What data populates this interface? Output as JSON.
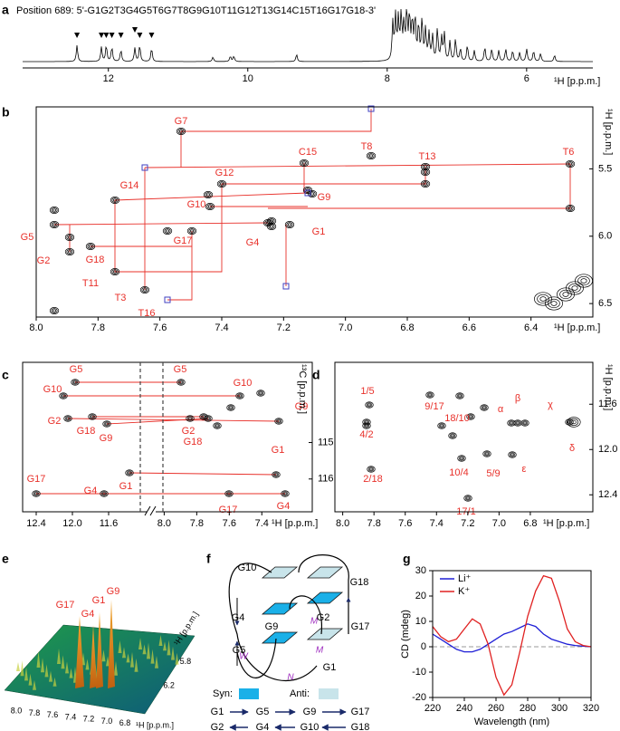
{
  "panels": {
    "a": {
      "letter": "a",
      "title": "Position 689: 5'-G1G2T3G4G5T6G7T8G9G10T11G12T13G14C15T16G17G18-3'",
      "xlim": [
        13.23,
        5.05
      ],
      "xticks": [
        12,
        10,
        8,
        6
      ],
      "xlabel": "¹H [p.p.m.]"
    },
    "b": {
      "letter": "b",
      "xlim": [
        8.0,
        6.2
      ],
      "ylim": [
        5.04,
        6.6
      ],
      "xticks": [
        {
          "value": 8,
          "label": "8.0"
        },
        7.8,
        7.6,
        7.4,
        7.2,
        {
          "value": 7,
          "label": "7.0"
        },
        6.8,
        6.6,
        6.4
      ],
      "yticks": [
        5.5,
        {
          "value": 6,
          "label": "6.0"
        },
        6.5
      ],
      "xlabel": "¹H [p.p.m.]",
      "ylabel": "¹H [p.p.m.]",
      "labels": [
        "G7",
        "C15",
        "T8",
        "T13",
        "T6",
        "G12",
        "G14",
        "G10",
        "G9",
        "G5",
        "G17",
        "G4",
        "G1",
        "G2",
        "G18",
        "T11",
        "T3",
        "T16"
      ]
    },
    "c": {
      "letter": "c",
      "xlim_left": [
        12.55,
        11.3
      ],
      "xlim_right": [
        8.03,
        7.09
      ],
      "ylim": [
        112.8,
        116.9
      ],
      "xticks_left": [
        12.4,
        {
          "value": 12,
          "label": "12.0"
        },
        11.6
      ],
      "xticks_right": [
        {
          "value": 8,
          "label": "8.0"
        },
        7.8,
        7.6,
        7.4
      ],
      "yticks": [
        115,
        116
      ],
      "xlabel": "¹H [p.p.m.]",
      "ylabel": "¹³C [p.p.m.]",
      "labels_left": [
        "G5",
        "G10",
        "G2",
        "G18",
        "G9",
        "G1",
        "G17",
        "G4"
      ],
      "labels_right": [
        "G5",
        "G10",
        "G9",
        "G2",
        "G18",
        "G1",
        "G17",
        "G4"
      ]
    },
    "d": {
      "letter": "d",
      "xlim": [
        8.05,
        6.4
      ],
      "ylim": [
        11.23,
        12.55
      ],
      "xticks": [
        {
          "value": 8,
          "label": "8.0"
        },
        7.8,
        7.6,
        7.4,
        7.2,
        {
          "value": 7,
          "label": "7.0"
        },
        6.8
      ],
      "yticks": [
        11.6,
        {
          "value": 12,
          "label": "12.0"
        },
        12.4
      ],
      "xlabel": "¹H [p.p.m.]",
      "ylabel": "¹H [p.p.m.]",
      "labels": [
        "1/5",
        "4/2",
        "9/17",
        "18/10",
        "α",
        "β",
        "χ",
        "δ",
        "2/18",
        "10/4",
        "5/9",
        "ε",
        "17/1"
      ]
    },
    "e": {
      "letter": "e",
      "xlim": [
        8.1,
        6.7
      ],
      "ylim": [
        6.6,
        5.4
      ],
      "xticks": [
        {
          "value": 8,
          "label": "8.0"
        },
        7.8,
        7.6,
        7.4,
        7.2,
        {
          "value": 7,
          "label": "7.0"
        },
        6.8
      ],
      "yticks": [
        6.2,
        5.8
      ],
      "xlabel": "¹H [p.p.m.]",
      "ylabel": "¹H [p.p.m.]",
      "labels": [
        "G17",
        "G4",
        "G1",
        "G9"
      ]
    },
    "f": {
      "letter": "f",
      "labels": [
        "G10",
        "G18",
        "G4",
        "G9",
        "M",
        "G2",
        "G17",
        "W",
        "G5",
        "N",
        "G1",
        "M"
      ],
      "syn": "Syn:",
      "anti": "Anti:",
      "row1": [
        "G1",
        "G5",
        "G9",
        "G17"
      ],
      "row2": [
        "G2",
        "G4",
        "G10",
        "G18"
      ]
    },
    "g": {
      "letter": "g"
    }
  },
  "chart_data": {
    "type": "line",
    "xlabel": "Wavelength (nm)",
    "ylabel": "CD (mdeg)",
    "x": [
      220,
      225,
      230,
      235,
      240,
      245,
      250,
      255,
      260,
      265,
      270,
      275,
      280,
      285,
      290,
      295,
      300,
      305,
      310,
      315,
      320
    ],
    "series": [
      {
        "name": "Li⁺",
        "color": "#1f1fd6",
        "values": [
          5,
          3,
          1,
          -1,
          -2,
          -2,
          -1,
          1,
          3,
          5,
          6,
          7.5,
          9,
          8,
          5,
          3,
          2,
          1,
          0.5,
          0.2,
          0
        ]
      },
      {
        "name": "K⁺",
        "color": "#e02020",
        "values": [
          8,
          4,
          2,
          3,
          7,
          11,
          9,
          1,
          -12,
          -19,
          -15,
          -2,
          12,
          22,
          28,
          27,
          18,
          7,
          2,
          0.5,
          0
        ]
      }
    ],
    "xlim": [
      220,
      320
    ],
    "ylim": [
      -20,
      30
    ],
    "xticks": [
      220,
      240,
      260,
      280,
      300,
      320
    ],
    "yticks": [
      -20,
      -10,
      0,
      10,
      20,
      30
    ],
    "legend": "upper left"
  }
}
